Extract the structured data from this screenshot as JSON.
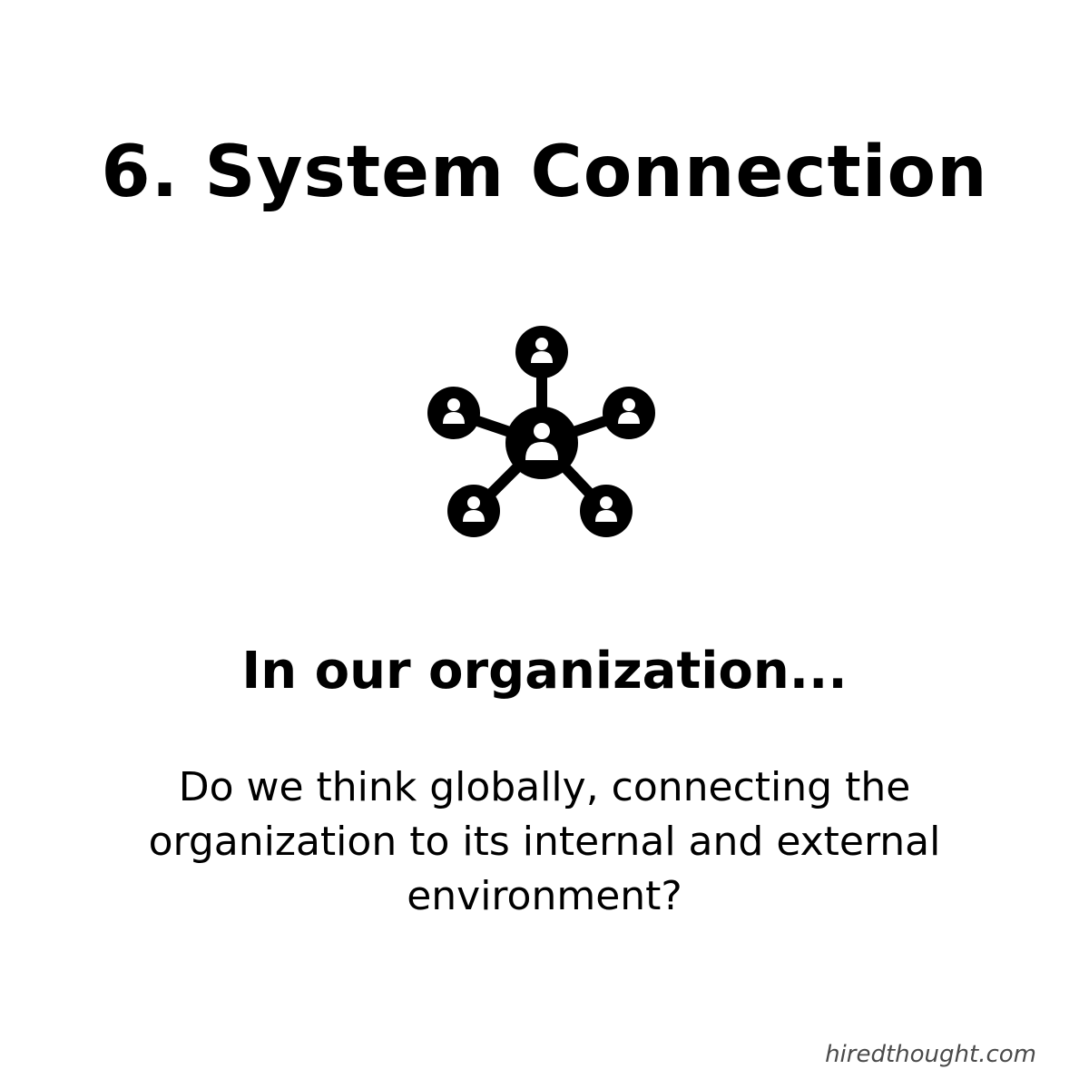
{
  "title": "6. System Connection",
  "icon": "network-people-icon",
  "subheading": "In our organization...",
  "question": "Do we think globally, connecting the organization to its internal and external environment?",
  "watermark": "hiredthought.com",
  "colors": {
    "background": "#ffffff",
    "text": "#000000",
    "watermark": "#4a4a4a"
  }
}
